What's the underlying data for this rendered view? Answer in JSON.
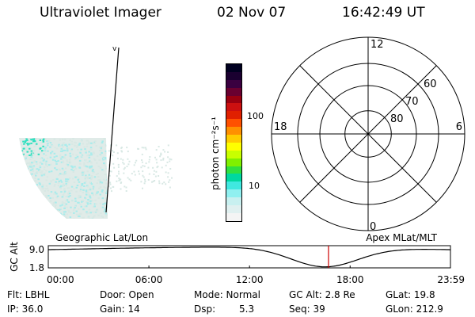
{
  "header": {
    "title": "Ultraviolet Imager",
    "date": "02 Nov 07",
    "time": "16:42:49 UT"
  },
  "colorbar": {
    "unit_label": "photon cm⁻²s⁻¹",
    "ticks": [
      "100",
      "10"
    ],
    "colors": [
      "#000020",
      "#1a0030",
      "#3a0040",
      "#6a0030",
      "#9a0010",
      "#cc1010",
      "#e02000",
      "#ff5000",
      "#ff9000",
      "#ffcc00",
      "#ffff00",
      "#c8ff00",
      "#80f000",
      "#30e040",
      "#00d8a0",
      "#40e8e0",
      "#90f0f0",
      "#c8f0f0",
      "#e0f0f0",
      "#f4f4f4"
    ]
  },
  "polar": {
    "mlt_labels": {
      "top": "12",
      "left": "18",
      "right": "6",
      "bottom": "0"
    },
    "lat_labels": [
      "60",
      "70",
      "80"
    ]
  },
  "alt_plot": {
    "ylabel": "GC Alt",
    "y_ticks": [
      "9.0",
      "1.8"
    ],
    "left_caption": "Geographic Lat/Lon",
    "right_caption": "Apex MLat/MLT",
    "x_ticks": [
      "00:00",
      "06:00",
      "12:00",
      "18:00",
      "23:59"
    ],
    "marker_time_hours": 16.71,
    "marker_color": "#cc0000"
  },
  "info": {
    "flt": "Flt: LBHL",
    "ip": "IP: 36.0",
    "door": "Door: Open",
    "gain": "Gain: 14",
    "mode": "Mode: Normal",
    "dsp_label": "Dsp:",
    "dsp_value": "5.3",
    "gcalt": "GC Alt: 2.8 Re",
    "seq": "Seq: 39",
    "glat": "GLat:  19.8",
    "glon": "GLon: 212.9"
  },
  "colors": {
    "image_low": "#d8e8e4",
    "image_mid": "#a8ecec",
    "image_high": "#30e0c0"
  }
}
